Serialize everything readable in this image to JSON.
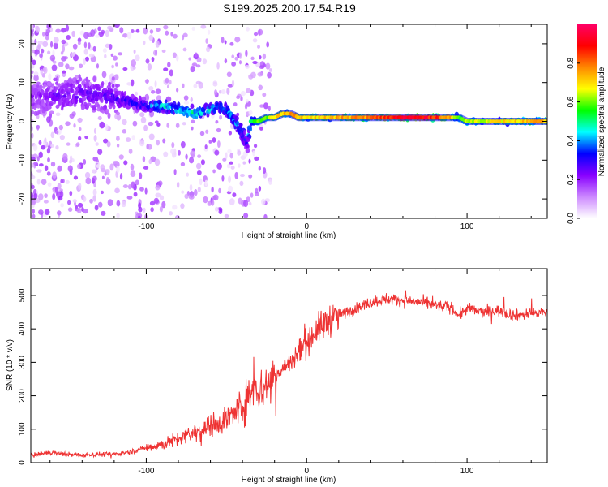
{
  "title": "S199.2025.200.17.54.R19",
  "chart_data": [
    {
      "type": "heatmap",
      "xlabel": "Height of straight line (km)",
      "ylabel": "Frequency (Hz)",
      "xlim": [
        -172,
        150
      ],
      "ylim": [
        -25,
        25
      ],
      "x_ticks": [
        -100,
        0,
        100
      ],
      "y_ticks": [
        -20,
        -10,
        0,
        10,
        20
      ],
      "x_tick_labels": [
        "-100",
        "0",
        "100"
      ],
      "y_tick_labels": [
        "-20",
        "-10",
        "0",
        "10",
        "20"
      ],
      "colorbar": {
        "label": "Normalized spectral amplitude",
        "range": [
          0,
          1
        ],
        "ticks": [
          0.0,
          0.2,
          0.4,
          0.6,
          0.8
        ],
        "tick_labels": [
          "0.0",
          "0.2",
          "0.4",
          "0.6",
          "0.8"
        ],
        "colormap": [
          "#ffffff",
          "#cc88ff",
          "#8800ff",
          "#0000ff",
          "#00ffff",
          "#00ff00",
          "#ffff00",
          "#ff8800",
          "#ff0000",
          "#ff0066"
        ]
      },
      "ridge": {
        "x": [
          -172,
          -150,
          -130,
          -110,
          -100,
          -90,
          -80,
          -70,
          -60,
          -55,
          -50,
          -45,
          -40,
          -37,
          -35,
          -30,
          -25,
          -20,
          -15,
          -10,
          -5,
          0,
          20,
          40,
          60,
          80,
          90,
          95,
          100,
          120,
          150
        ],
        "y": [
          6,
          7,
          7,
          5,
          4,
          4,
          3,
          2,
          3,
          4,
          3,
          0,
          -3,
          -6,
          0,
          0,
          1,
          1,
          2,
          2,
          1,
          1,
          1,
          1,
          1,
          1,
          1,
          1,
          0,
          0,
          0
        ],
        "amp": [
          0.2,
          0.25,
          0.25,
          0.3,
          0.35,
          0.45,
          0.45,
          0.5,
          0.45,
          0.4,
          0.4,
          0.4,
          0.35,
          0.3,
          0.5,
          0.6,
          0.6,
          0.7,
          0.75,
          0.8,
          0.75,
          0.7,
          0.75,
          0.8,
          0.95,
          0.9,
          0.75,
          0.55,
          0.65,
          0.7,
          0.75
        ],
        "width": [
          10,
          10,
          10,
          4,
          3,
          3,
          3,
          3,
          3,
          3,
          3,
          4,
          5,
          4,
          1.5,
          1.5,
          1,
          1,
          1,
          1,
          1,
          1,
          1,
          1,
          1,
          1,
          1,
          1.5,
          1,
          1,
          1
        ]
      }
    },
    {
      "type": "line",
      "xlabel": "Height of straight line (km)",
      "ylabel": "SNR (10 * v/v)",
      "xlim": [
        -172,
        150
      ],
      "ylim": [
        0,
        580
      ],
      "x_ticks": [
        -100,
        0,
        100
      ],
      "y_ticks": [
        0,
        100,
        200,
        300,
        400,
        500
      ],
      "x_tick_labels": [
        "-100",
        "0",
        "100"
      ],
      "y_tick_labels": [
        "0",
        "100",
        "200",
        "300",
        "400",
        "500"
      ],
      "series": [
        {
          "color": "#ee3333",
          "x": [
            -172,
            -160,
            -150,
            -140,
            -130,
            -120,
            -110,
            -100,
            -90,
            -80,
            -70,
            -60,
            -50,
            -45,
            -40,
            -35,
            -33,
            -30,
            -25,
            -20,
            -15,
            -10,
            -5,
            0,
            5,
            10,
            15,
            20,
            30,
            40,
            50,
            60,
            70,
            80,
            90,
            95,
            100,
            110,
            120,
            130,
            140,
            150
          ],
          "y": [
            22,
            30,
            25,
            22,
            25,
            25,
            32,
            45,
            55,
            70,
            90,
            110,
            130,
            150,
            170,
            200,
            260,
            210,
            230,
            260,
            280,
            300,
            330,
            360,
            390,
            410,
            430,
            440,
            460,
            480,
            490,
            485,
            480,
            470,
            465,
            440,
            460,
            450,
            455,
            440,
            445,
            450
          ]
        }
      ]
    }
  ]
}
